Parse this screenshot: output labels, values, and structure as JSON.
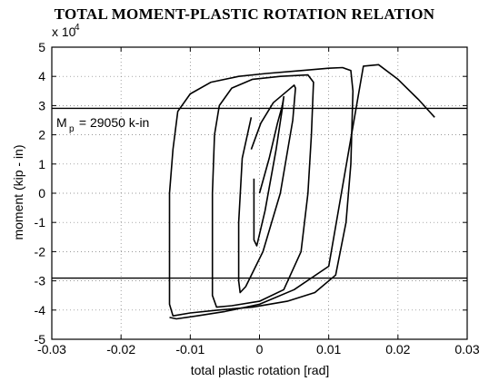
{
  "chart_data": {
    "type": "line",
    "title": "TOTAL MOMENT-PLASTIC ROTATION RELATION",
    "xlabel": "total plastic rotation [rad]",
    "ylabel": "moment  (kip - in)",
    "y_multiplier": "x 10",
    "y_multiplier_exp": "4",
    "xlim": [
      -0.03,
      0.03
    ],
    "ylim": [
      -5,
      5
    ],
    "x_ticks": [
      "-0.03",
      "-0.02",
      "-0.01",
      "0",
      "0.01",
      "0.02",
      "0.03"
    ],
    "y_ticks": [
      "5",
      "4",
      "3",
      "2",
      "1",
      "0",
      "-1",
      "-2",
      "-3",
      "-4",
      "-5"
    ],
    "grid": "dotted",
    "reference_lines": [
      {
        "name": "Mp",
        "y": 2.905
      },
      {
        "name": "-Mp",
        "y": -2.905
      }
    ],
    "annotation": {
      "main": "M",
      "sub": "p",
      "rest": " = 29050 k-in"
    },
    "series": [
      {
        "x": [
          0.0,
          0.0014,
          0.0026,
          0.0033,
          0.0035,
          0.0033,
          0.0024,
          0.0008,
          -0.0004,
          -0.0008,
          -0.0008
        ],
        "y": [
          0.0,
          1.2,
          2.4,
          3.0,
          3.3,
          2.9,
          1.5,
          -0.6,
          -1.8,
          -1.6,
          0.5
        ]
      },
      {
        "x": [
          -0.0012,
          0.0002,
          0.002,
          0.004,
          0.005,
          0.0052,
          0.0048,
          0.003,
          0.0005,
          -0.002,
          -0.0028,
          -0.003,
          -0.003,
          -0.0025,
          -0.0012
        ],
        "y": [
          1.5,
          2.4,
          3.1,
          3.5,
          3.7,
          3.6,
          2.5,
          0.0,
          -2.0,
          -3.2,
          -3.4,
          -3.0,
          -1.0,
          1.2,
          2.6
        ]
      },
      {
        "x": [
          -0.0065,
          -0.0058,
          -0.004,
          -0.001,
          0.003,
          0.007,
          0.0078,
          0.0075,
          0.007,
          0.006,
          0.0035,
          0.0,
          -0.004,
          -0.0062,
          -0.0068,
          -0.0068,
          -0.0065
        ],
        "y": [
          2.0,
          3.0,
          3.6,
          3.9,
          4.0,
          4.05,
          3.8,
          2.0,
          0.0,
          -2.0,
          -3.3,
          -3.7,
          -3.85,
          -3.9,
          -3.5,
          0.0,
          2.0
        ]
      },
      {
        "x": [
          -0.0125,
          -0.0118,
          -0.01,
          -0.007,
          -0.003,
          0.001,
          0.006,
          0.01,
          0.012,
          0.0132,
          0.0135,
          0.0132,
          0.0125,
          0.011,
          0.008,
          0.004,
          -0.001,
          -0.006,
          -0.01,
          -0.0125,
          -0.013,
          -0.013,
          -0.0125
        ],
        "y": [
          1.5,
          2.8,
          3.4,
          3.8,
          4.0,
          4.1,
          4.2,
          4.28,
          4.3,
          4.2,
          3.5,
          1.0,
          -1.0,
          -2.8,
          -3.4,
          -3.7,
          -3.9,
          -4.0,
          -4.1,
          -4.2,
          -3.8,
          0.0,
          1.5
        ]
      },
      {
        "x": [
          -0.013,
          -0.012,
          -0.009,
          -0.005,
          0.0,
          0.005,
          0.01,
          0.015,
          0.0172,
          0.02,
          0.023,
          0.0253
        ],
        "y": [
          -4.25,
          -4.3,
          -4.2,
          -4.05,
          -3.8,
          -3.3,
          -2.5,
          4.35,
          4.4,
          3.9,
          3.2,
          2.6
        ]
      }
    ]
  }
}
